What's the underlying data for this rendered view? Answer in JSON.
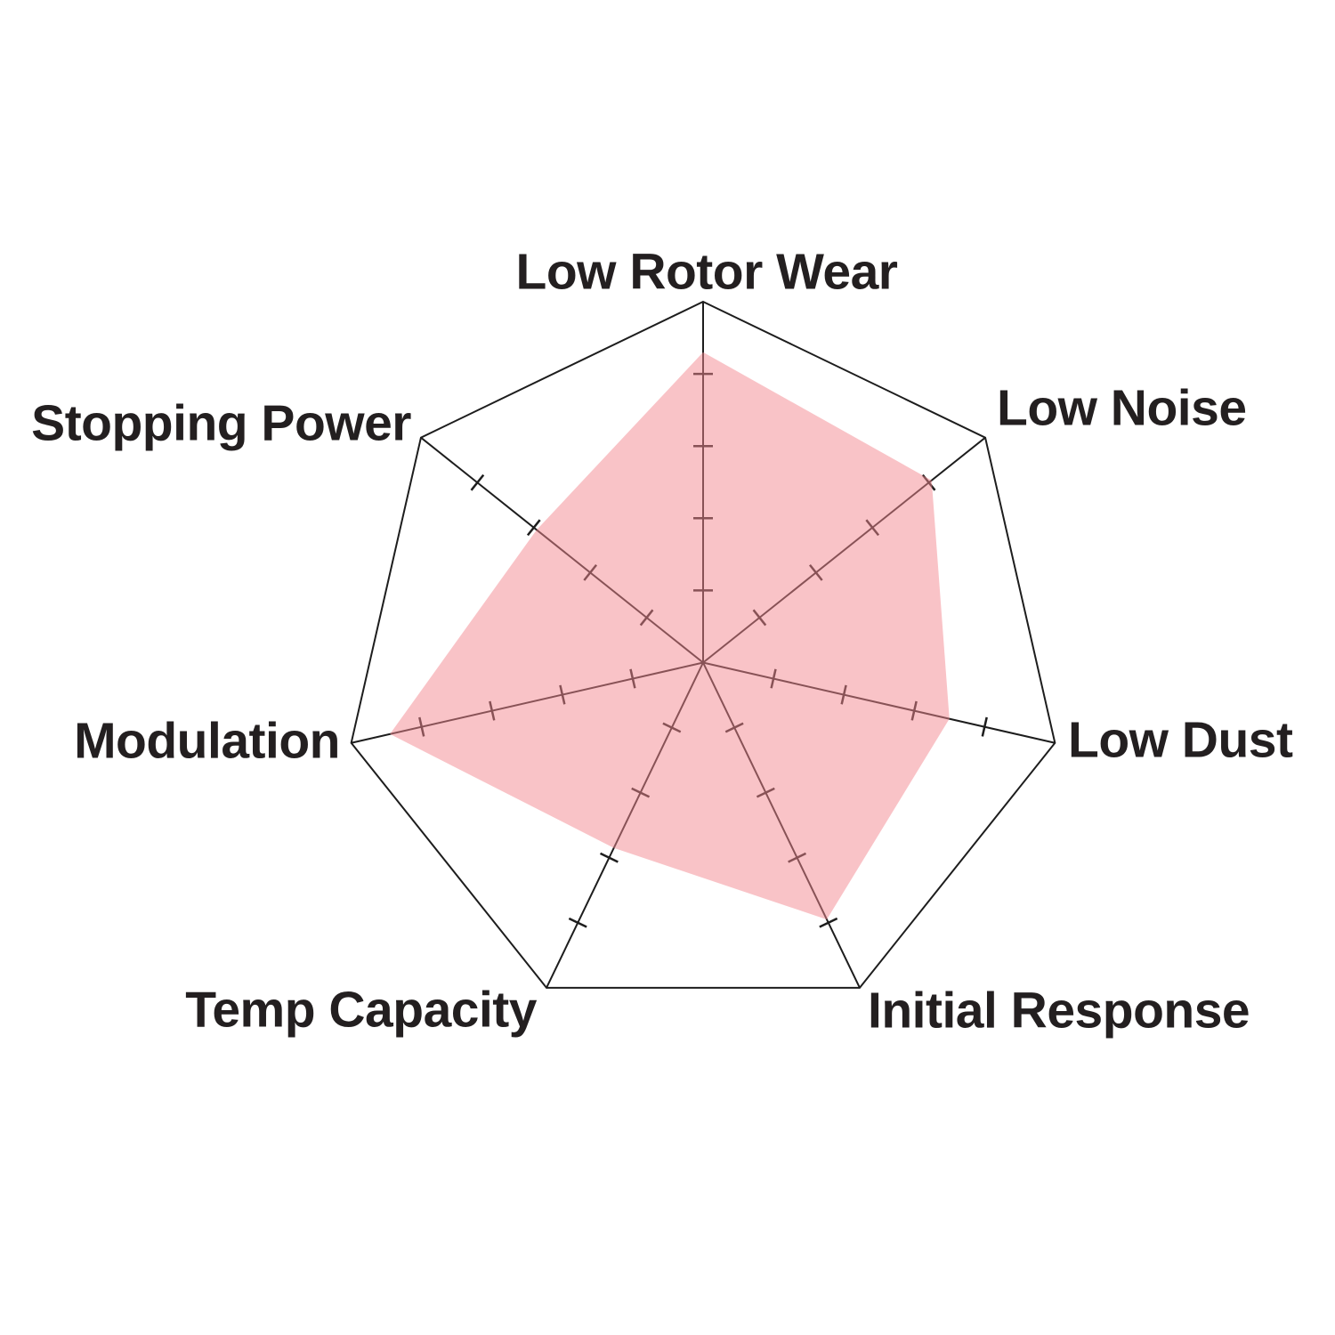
{
  "chart_data": {
    "type": "radar",
    "shape": "heptagon",
    "axes": [
      "Low Rotor Wear",
      "Low Noise",
      "Low Dust",
      "Initial Response",
      "Temp Capacity",
      "Modulation",
      "Stopping Power"
    ],
    "values": [
      4.3,
      4.05,
      3.5,
      3.95,
      2.85,
      4.45,
      2.95
    ],
    "scale": {
      "min": 0,
      "max": 5,
      "tick_values": [
        1,
        2,
        3,
        4
      ],
      "gridlines": "none",
      "tick_style": "short perpendicular dashes on each spoke",
      "outline": "single heptagon outline at max value"
    },
    "legend": "none",
    "title": "",
    "colors": {
      "fill": "rgba(243,135,143,0.5)",
      "fill_over_white_hex": "#f9c3c7",
      "line": "#1d1d1d",
      "label_text": "#231f20",
      "background": "#ffffff"
    }
  }
}
